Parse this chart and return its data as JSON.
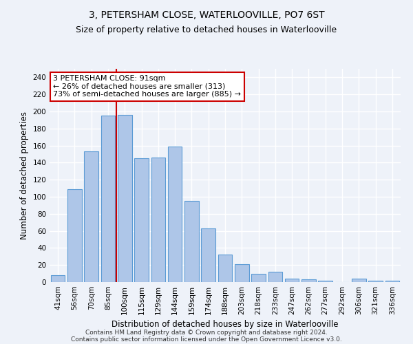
{
  "title": "3, PETERSHAM CLOSE, WATERLOOVILLE, PO7 6ST",
  "subtitle": "Size of property relative to detached houses in Waterlooville",
  "xlabel": "Distribution of detached houses by size in Waterlooville",
  "ylabel": "Number of detached properties",
  "categories": [
    "41sqm",
    "56sqm",
    "70sqm",
    "85sqm",
    "100sqm",
    "115sqm",
    "129sqm",
    "144sqm",
    "159sqm",
    "174sqm",
    "188sqm",
    "203sqm",
    "218sqm",
    "233sqm",
    "247sqm",
    "262sqm",
    "277sqm",
    "292sqm",
    "306sqm",
    "321sqm",
    "336sqm"
  ],
  "values": [
    8,
    109,
    153,
    195,
    196,
    145,
    146,
    159,
    95,
    63,
    32,
    21,
    10,
    12,
    4,
    3,
    2,
    0,
    4,
    2,
    2
  ],
  "bar_color": "#aec6e8",
  "bar_edgecolor": "#5b9bd5",
  "vline_index": 3.5,
  "annotation_line1": "3 PETERSHAM CLOSE: 91sqm",
  "annotation_line2": "← 26% of detached houses are smaller (313)",
  "annotation_line3": "73% of semi-detached houses are larger (885) →",
  "annotation_box_facecolor": "#ffffff",
  "annotation_box_edgecolor": "#cc0000",
  "vline_color": "#cc0000",
  "ylim": [
    0,
    250
  ],
  "yticks": [
    0,
    20,
    40,
    60,
    80,
    100,
    120,
    140,
    160,
    180,
    200,
    220,
    240
  ],
  "footer_line1": "Contains HM Land Registry data © Crown copyright and database right 2024.",
  "footer_line2": "Contains public sector information licensed under the Open Government Licence v3.0.",
  "background_color": "#eef2f9",
  "grid_color": "#ffffff",
  "title_fontsize": 10,
  "subtitle_fontsize": 9,
  "axis_label_fontsize": 8.5,
  "tick_fontsize": 7.5,
  "annotation_fontsize": 8,
  "footer_fontsize": 6.5
}
